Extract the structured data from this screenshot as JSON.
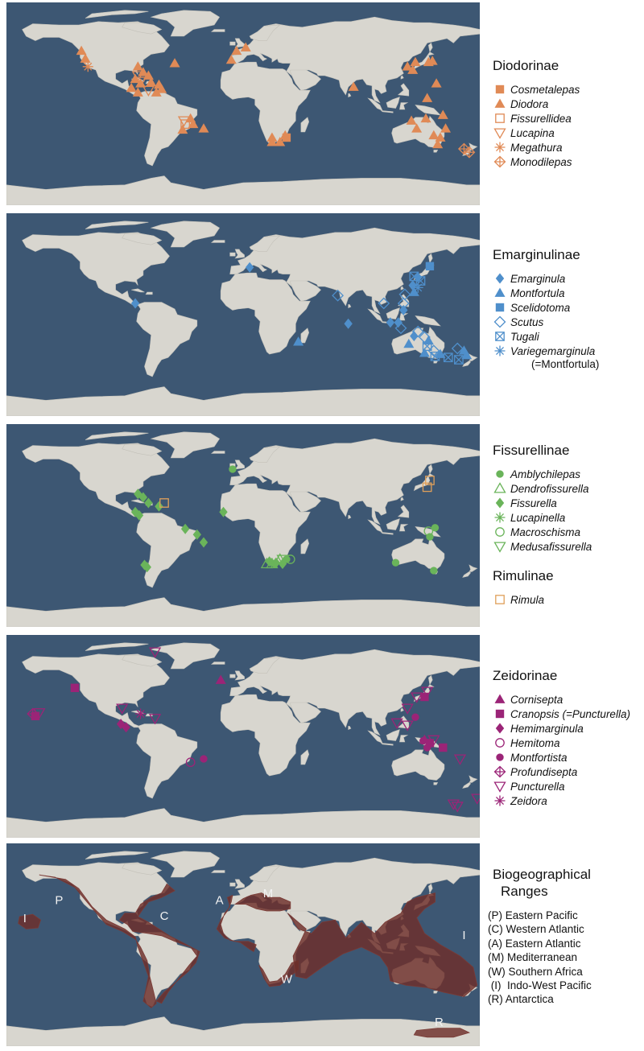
{
  "colors": {
    "ocean": "#3d5773",
    "land": "#d8d6cf",
    "diodorinae": "#e08a56",
    "emarginulinae": "#4f8fcb",
    "fissurellinae": "#6ab45a",
    "rimulinae": "#e0a05a",
    "zeidorinae": "#9b2477",
    "range": "#6e2e2a"
  },
  "panels": [
    {
      "id": "diodorinae",
      "legend_title": "Diodorinae",
      "color": "#e08a56",
      "taxa": [
        {
          "name": "Cosmetalepas",
          "icon": "filled-square",
          "note": ""
        },
        {
          "name": "Diodora",
          "icon": "filled-triangle",
          "note": ""
        },
        {
          "name": "Fissurellidea",
          "icon": "open-square",
          "note": ""
        },
        {
          "name": "Lucapina",
          "icon": "open-down-triangle",
          "note": ""
        },
        {
          "name": "Megathura",
          "icon": "asterisk",
          "note": ""
        },
        {
          "name": "Monodilepas",
          "icon": "crossed-diamond",
          "note": ""
        }
      ]
    },
    {
      "id": "emarginulinae",
      "legend_title": "Emarginulinae",
      "color": "#4f8fcb",
      "taxa": [
        {
          "name": "Emarginula",
          "icon": "filled-diamond",
          "note": ""
        },
        {
          "name": "Montfortula",
          "icon": "filled-triangle",
          "note": ""
        },
        {
          "name": "Scelidotoma",
          "icon": "filled-square",
          "note": ""
        },
        {
          "name": "Scutus",
          "icon": "open-diamond",
          "note": ""
        },
        {
          "name": "Tugali",
          "icon": "crossed-square",
          "note": ""
        },
        {
          "name": "Variegemarginula",
          "icon": "asterisk",
          "note": "(=Montfortula)"
        }
      ]
    },
    {
      "id": "fissurellinae",
      "legend_title": "Fissurellinae",
      "color": "#6ab45a",
      "taxa": [
        {
          "name": "Amblychilepas",
          "icon": "filled-circle",
          "note": ""
        },
        {
          "name": "Dendrofissurella",
          "icon": "open-triangle",
          "note": ""
        },
        {
          "name": "Fissurella",
          "icon": "filled-diamond",
          "note": ""
        },
        {
          "name": "Lucapinella",
          "icon": "asterisk",
          "note": ""
        },
        {
          "name": "Macroschisma",
          "icon": "open-circle",
          "note": ""
        },
        {
          "name": "Medusafissurella",
          "icon": "open-down-triangle",
          "note": ""
        }
      ],
      "sub_legend_title": "Rimulinae",
      "sub_taxa": [
        {
          "name": "Rimula",
          "icon": "open-square",
          "color": "#e0a05a"
        }
      ]
    },
    {
      "id": "zeidorinae",
      "legend_title": "Zeidorinae",
      "color": "#9b2477",
      "taxa": [
        {
          "name": "Cornisepta",
          "icon": "filled-triangle",
          "note": ""
        },
        {
          "name": "Cranopsis",
          "icon": "filled-square",
          "note": "(=Puncturella)"
        },
        {
          "name": "Hemimarginula",
          "icon": "filled-diamond",
          "note": ""
        },
        {
          "name": "Hemitoma",
          "icon": "open-circle",
          "note": ""
        },
        {
          "name": "Montfortista",
          "icon": "filled-circle",
          "note": ""
        },
        {
          "name": "Profundisepta",
          "icon": "crossed-diamond",
          "note": ""
        },
        {
          "name": "Puncturella",
          "icon": "open-down-triangle",
          "note": ""
        },
        {
          "name": "Zeidora",
          "icon": "asterisk",
          "note": ""
        }
      ]
    }
  ],
  "biogeography": {
    "title_line1": "Biogeographical",
    "title_line2": "Ranges",
    "ranges": [
      "(P) Eastern Pacific",
      "(C) Western Atlantic",
      "(A) Eastern Atlantic",
      "(M) Mediterranean",
      "(W) Southern Africa",
      " (I)  Indo-West Pacific",
      "(R) Antarctica"
    ],
    "map_labels": [
      "P",
      "C",
      "A",
      "M",
      "W",
      "I",
      "I",
      "R"
    ]
  },
  "occurrences": {
    "diodorinae": [
      [
        "filled-triangle",
        -123,
        47
      ],
      [
        "filled-triangle",
        -120,
        40
      ],
      [
        "asterisk",
        -118,
        33
      ],
      [
        "filled-triangle",
        -80,
        33
      ],
      [
        "filled-triangle",
        -76,
        28
      ],
      [
        "filled-triangle",
        -72,
        25
      ],
      [
        "filled-triangle",
        -82,
        22
      ],
      [
        "filled-triangle",
        -78,
        18
      ],
      [
        "filled-triangle",
        -70,
        19
      ],
      [
        "filled-triangle",
        -64,
        17
      ],
      [
        "filled-triangle",
        -85,
        14
      ],
      [
        "filled-triangle",
        -80,
        10
      ],
      [
        "filled-triangle",
        -62,
        13
      ],
      [
        "filled-triangle",
        -66,
        10
      ],
      [
        "filled-triangle",
        -52,
        36
      ],
      [
        "open-down-triangle",
        -80,
        25
      ],
      [
        "open-down-triangle",
        -78,
        20
      ],
      [
        "open-down-triangle",
        -72,
        12
      ],
      [
        "filled-triangle",
        -9,
        39
      ],
      [
        "filled-triangle",
        -5,
        47
      ],
      [
        "filled-triangle",
        2,
        50
      ],
      [
        "filled-triangle",
        -40,
        -13
      ],
      [
        "filled-triangle",
        -38,
        -18
      ],
      [
        "filled-triangle",
        -46,
        -23
      ],
      [
        "open-square",
        -44,
        -18
      ],
      [
        "open-down-triangle",
        -45,
        -15
      ],
      [
        "filled-triangle",
        -30,
        -22
      ],
      [
        "filled-triangle",
        28,
        -34
      ],
      [
        "filled-triangle",
        22,
        -34
      ],
      [
        "filled-triangle",
        32,
        -28
      ],
      [
        "filled-square",
        33,
        -30
      ],
      [
        "filled-triangle",
        22,
        -30
      ],
      [
        "filled-triangle",
        84,
        15
      ],
      [
        "filled-triangle",
        125,
        33
      ],
      [
        "filled-triangle",
        129,
        30
      ],
      [
        "filled-triangle",
        131,
        37
      ],
      [
        "filled-triangle",
        141,
        37
      ],
      [
        "filled-triangle",
        144,
        38
      ],
      [
        "filled-triangle",
        147,
        18
      ],
      [
        "filled-triangle",
        140,
        5
      ],
      [
        "filled-triangle",
        128,
        -15
      ],
      [
        "filled-triangle",
        132,
        -22
      ],
      [
        "filled-triangle",
        145,
        -28
      ],
      [
        "filled-triangle",
        150,
        -30
      ],
      [
        "filled-triangle",
        152,
        -10
      ],
      [
        "filled-triangle",
        154,
        -22
      ],
      [
        "filled-triangle",
        148,
        -36
      ],
      [
        "filled-triangle",
        139,
        -13
      ],
      [
        "crossed-diamond",
        172,
        -43
      ],
      [
        "crossed-diamond",
        168,
        -40
      ]
    ],
    "emarginulinae": [
      [
        "filled-diamond",
        5,
        42
      ],
      [
        "filled-diamond",
        -82,
        10
      ],
      [
        "open-diamond",
        72,
        17
      ],
      [
        "filled-diamond",
        80,
        -8
      ],
      [
        "filled-triangle",
        42,
        -24
      ],
      [
        "open-diamond",
        107,
        10
      ],
      [
        "open-diamond",
        123,
        18
      ],
      [
        "open-diamond",
        122,
        10
      ],
      [
        "filled-triangle",
        130,
        20
      ],
      [
        "filled-diamond",
        129,
        26
      ],
      [
        "filled-diamond",
        133,
        33
      ],
      [
        "crossed-square",
        130,
        34
      ],
      [
        "crossed-square",
        135,
        30
      ],
      [
        "filled-square",
        142,
        43
      ],
      [
        "asterisk",
        133,
        24
      ],
      [
        "filled-diamond",
        122,
        4
      ],
      [
        "filled-diamond",
        118,
        -7
      ],
      [
        "open-diamond",
        120,
        -12
      ],
      [
        "open-diamond",
        133,
        -15
      ],
      [
        "filled-diamond",
        130,
        -19
      ],
      [
        "filled-triangle",
        126,
        -26
      ],
      [
        "open-diamond",
        138,
        -20
      ],
      [
        "crossed-square",
        140,
        -28
      ],
      [
        "open-diamond",
        145,
        -32
      ],
      [
        "filled-triangle",
        138,
        -34
      ],
      [
        "filled-triangle",
        150,
        -35
      ],
      [
        "crossed-square",
        146,
        -37
      ],
      [
        "crossed-square",
        156,
        -38
      ],
      [
        "filled-triangle",
        168,
        -32
      ],
      [
        "open-diamond",
        163,
        -30
      ],
      [
        "filled-triangle",
        170,
        -36
      ],
      [
        "crossed-square",
        164,
        -40
      ],
      [
        "filled-diamond",
        112,
        -7
      ],
      [
        "filled-triangle",
        141,
        -23
      ]
    ],
    "fissurellinae": [
      [
        "filled-circle",
        -8,
        50
      ],
      [
        "filled-diamond",
        -80,
        28
      ],
      [
        "filled-diamond",
        -76,
        25
      ],
      [
        "filled-diamond",
        -82,
        12
      ],
      [
        "filled-diamond",
        -79,
        9
      ],
      [
        "filled-diamond",
        -72,
        20
      ],
      [
        "filled-diamond",
        -64,
        17
      ],
      [
        "filled-diamond",
        -44,
        -3
      ],
      [
        "filled-diamond",
        -35,
        -8
      ],
      [
        "filled-diamond",
        -30,
        -15
      ],
      [
        "filled-diamond",
        -15,
        12
      ],
      [
        "filled-diamond",
        -75,
        -35
      ],
      [
        "filled-diamond",
        -73,
        -37
      ],
      [
        "open-triangle",
        18,
        -34
      ],
      [
        "open-triangle",
        22,
        -34
      ],
      [
        "open-triangle",
        28,
        -30
      ],
      [
        "open-down-triangle",
        30,
        -30
      ],
      [
        "filled-diamond",
        25,
        -33
      ],
      [
        "filled-circle",
        24,
        -34
      ],
      [
        "filled-circle",
        33,
        -30
      ],
      [
        "open-circle",
        36,
        -30
      ],
      [
        "filled-diamond",
        30,
        -34
      ],
      [
        "filled-diamond",
        20,
        -32
      ],
      [
        "open-circle",
        141,
        -5
      ],
      [
        "filled-circle",
        142,
        -10
      ],
      [
        "filled-circle",
        116,
        -33
      ],
      [
        "filled-circle",
        145,
        -40
      ],
      [
        "filled-circle",
        146,
        -2
      ]
    ],
    "rimulinae": [
      [
        "open-square",
        -60,
        20
      ],
      [
        "open-square",
        142,
        40
      ],
      [
        "open-square",
        140,
        34
      ]
    ],
    "zeidorinae": [
      [
        "open-down-triangle",
        -67,
        75
      ],
      [
        "filled-square",
        -128,
        43
      ],
      [
        "filled-triangle",
        -17,
        50
      ],
      [
        "open-down-triangle",
        -92,
        25
      ],
      [
        "asterisk",
        -78,
        20
      ],
      [
        "open-down-triangle",
        -67,
        16
      ],
      [
        "filled-diamond",
        -93,
        11
      ],
      [
        "filled-diamond",
        -89,
        8
      ],
      [
        "open-circle",
        -40,
        -23
      ],
      [
        "filled-circle",
        -30,
        -20
      ],
      [
        "crossed-diamond",
        -160,
        20
      ],
      [
        "filled-square",
        -158,
        18
      ],
      [
        "open-down-triangle",
        -155,
        21
      ],
      [
        "open-down-triangle",
        132,
        35
      ],
      [
        "filled-square",
        138,
        35
      ],
      [
        "open-down-triangle",
        140,
        40
      ],
      [
        "open-down-triangle",
        125,
        25
      ],
      [
        "filled-circle",
        131,
        17
      ],
      [
        "open-down-triangle",
        117,
        12
      ],
      [
        "open-down-triangle",
        125,
        10
      ],
      [
        "filled-square",
        142,
        -6
      ],
      [
        "filled-circle",
        140,
        -10
      ],
      [
        "open-down-triangle",
        145,
        -3
      ],
      [
        "filled-square",
        152,
        -10
      ],
      [
        "open-down-triangle",
        165,
        -20
      ],
      [
        "open-down-triangle",
        160,
        -60
      ],
      [
        "open-down-triangle",
        163,
        -62
      ],
      [
        "open-down-triangle",
        178,
        -55
      ],
      [
        "filled-triangle",
        138,
        -3
      ],
      [
        "filled-circle",
        137,
        -4
      ]
    ]
  }
}
